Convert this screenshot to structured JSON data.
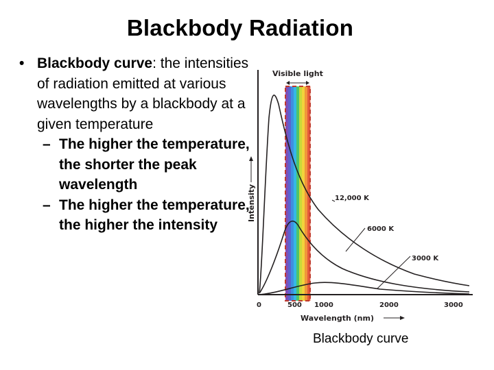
{
  "slide": {
    "title": "Blackbody Radiation",
    "bullet": {
      "term": "Blackbody curve",
      "definition": ": the intensities of radiation emitted at various wavelengths by a blackbody at a given temperature"
    },
    "sub_bullets": [
      "The higher the temperature, the shorter the peak wavelength",
      "The higher the temperature, the higher the intensity"
    ],
    "caption": "Blackbody curve"
  },
  "figure": {
    "visible_label": "Visible light",
    "y_axis_label": "Intensity",
    "x_axis_label": "Wavelength (nm)",
    "x_ticks": [
      "0",
      "500",
      "1000",
      "2000",
      "3000"
    ],
    "curve_labels": [
      "12,000 K",
      "6000 K",
      "3000 K"
    ],
    "colors": {
      "spectrum": [
        "#7f4fb8",
        "#5a64d0",
        "#3f8fe0",
        "#35b8e6",
        "#4fc46a",
        "#c9d93a",
        "#f2d23c",
        "#f0963a",
        "#e45a3c"
      ],
      "curve": "#231f20",
      "dashed_border": "#c0392b"
    }
  }
}
